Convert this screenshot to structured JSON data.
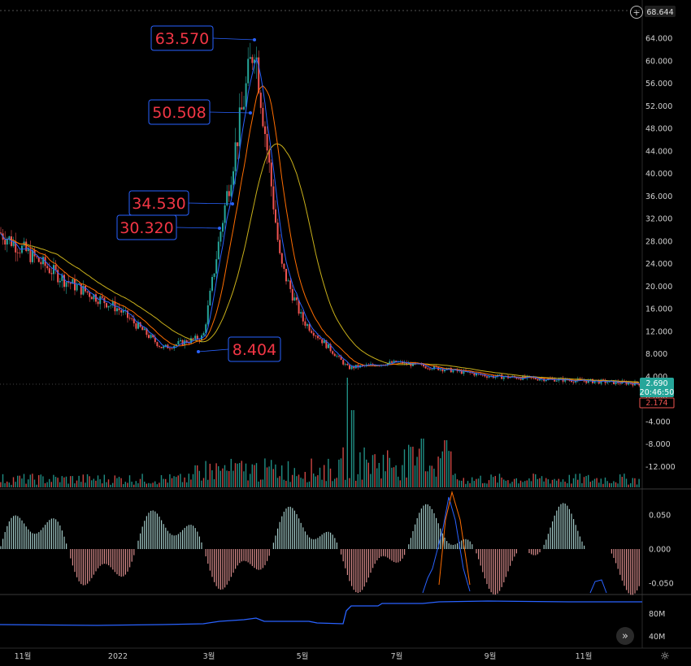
{
  "price_axis": {
    "top_badge": "68.644",
    "ticks": [
      "64.000",
      "60.000",
      "56.000",
      "52.000",
      "48.000",
      "44.000",
      "40.000",
      "36.000",
      "32.000",
      "28.000",
      "24.000",
      "20.000",
      "16.000",
      "12.000",
      "8.000",
      "4.000",
      "0.000",
      "-4.000",
      "-8.000",
      "-12.000"
    ],
    "current_price": "2.690",
    "countdown": "20:46:50",
    "secondary_price": "2.174"
  },
  "indicator_axis": {
    "ticks": [
      "0.050",
      "0.000",
      "-0.050"
    ]
  },
  "bottom_axis": {
    "ticks": [
      "80M",
      "40M"
    ]
  },
  "time_axis": {
    "labels": [
      "11월",
      "2022",
      "3월",
      "5월",
      "7월",
      "9월",
      "11월"
    ]
  },
  "callouts": [
    {
      "label": "63.570",
      "value": 63.57
    },
    {
      "label": "50.508",
      "value": 50.508
    },
    {
      "label": "34.530",
      "value": 34.53
    },
    {
      "label": "30.320",
      "value": 30.32
    },
    {
      "label": "8.404",
      "value": 8.404
    }
  ],
  "chart_data": {
    "type": "candlestick",
    "x_labels": [
      "11월",
      "2022",
      "3월",
      "5월",
      "7월",
      "9월",
      "11월"
    ],
    "ylim": [
      -16,
      68.644
    ],
    "current_price": 2.69,
    "annotations": [
      63.57,
      50.508,
      34.53,
      30.32,
      8.404
    ],
    "price_path": [
      {
        "x": "11월",
        "y": 29.5
      },
      {
        "x": "12월",
        "y": 21
      },
      {
        "x": "2022",
        "y": 16
      },
      {
        "x": "2월",
        "y": 9
      },
      {
        "x": "3월",
        "y": 11
      },
      {
        "x": "3월 중순",
        "y": 30.32
      },
      {
        "x": "4월 초",
        "y": 63.57
      },
      {
        "x": "4월 중순",
        "y": 24
      },
      {
        "x": "5월",
        "y": 14
      },
      {
        "x": "6월",
        "y": 5.5
      },
      {
        "x": "7월",
        "y": 6.5
      },
      {
        "x": "9월",
        "y": 4
      },
      {
        "x": "11월",
        "y": 2.69
      }
    ],
    "grid": false
  },
  "colors": {
    "up": "#26a69a",
    "down": "#ef5350",
    "ma_fast": "#2962ff",
    "ma_mid": "#ff6d00",
    "ma_slow": "#c9b01a",
    "callout_border": "#2962ff",
    "callout_text": "#f23645",
    "badge_green": "#26a69a"
  },
  "icons": {
    "settings": "gear-icon",
    "scroll": "double-chevron-right-icon",
    "add": "plus-circle-icon"
  }
}
